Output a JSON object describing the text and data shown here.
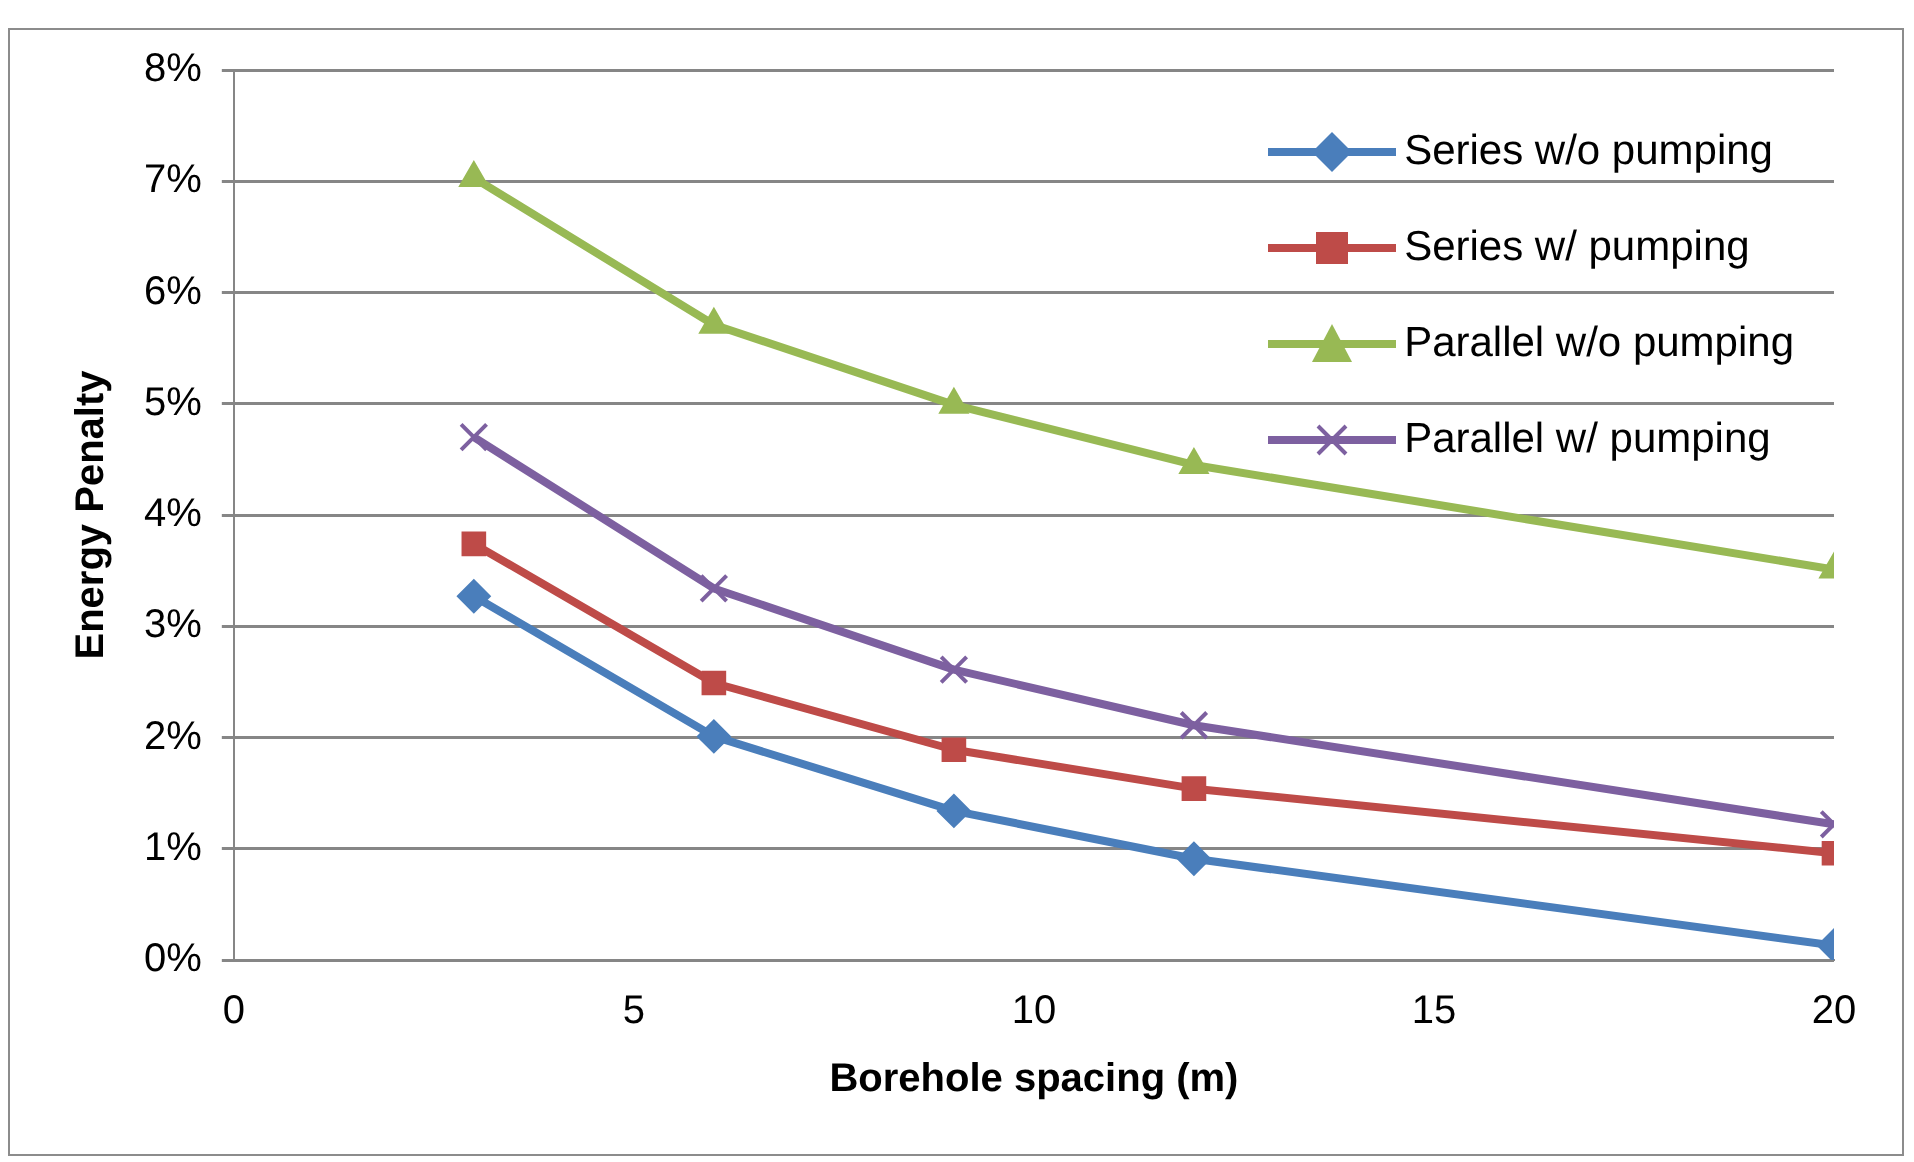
{
  "chart_data": {
    "type": "line",
    "xlabel": "Borehole spacing (m)",
    "ylabel": "Energy Penalty",
    "x": [
      3,
      6,
      9,
      12,
      20
    ],
    "series": [
      {
        "name": "Series w/o pumping",
        "color": "#4a7ebb",
        "marker": "diamond",
        "values": [
          3.27,
          2.01,
          1.34,
          0.91,
          0.13
        ]
      },
      {
        "name": "Series w/ pumping",
        "color": "#be4b48",
        "marker": "square",
        "values": [
          3.74,
          2.49,
          1.89,
          1.54,
          0.96
        ]
      },
      {
        "name": "Parallel w/o pumping",
        "color": "#98b954",
        "marker": "triangle",
        "values": [
          7.03,
          5.71,
          4.99,
          4.45,
          3.51
        ]
      },
      {
        "name": "Parallel w/ pumping",
        "color": "#7d60a0",
        "marker": "cross",
        "values": [
          4.7,
          3.34,
          2.61,
          2.11,
          1.22
        ]
      }
    ],
    "xlim": [
      0,
      20
    ],
    "xticks": [
      0,
      5,
      10,
      15,
      20
    ],
    "ylim": [
      0,
      8
    ],
    "yticks": [
      {
        "value": 0,
        "label": "0%"
      },
      {
        "value": 1,
        "label": "1%"
      },
      {
        "value": 2,
        "label": "2%"
      },
      {
        "value": 3,
        "label": "3%"
      },
      {
        "value": 4,
        "label": "4%"
      },
      {
        "value": 5,
        "label": "5%"
      },
      {
        "value": 6,
        "label": "6%"
      },
      {
        "value": 7,
        "label": "7%"
      },
      {
        "value": 8,
        "label": "8%"
      }
    ],
    "grid": "y",
    "legend": "top right",
    "line_style": "solid"
  }
}
